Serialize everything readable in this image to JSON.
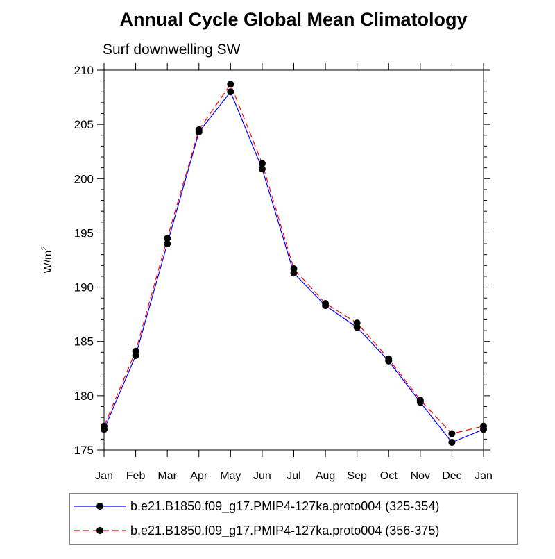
{
  "chart_data": {
    "type": "line",
    "title": "Annual Cycle Global Mean Climatology",
    "subtitle": "Surf downwelling SW",
    "ylabel": "W/m",
    "ylabel_superscript": "2",
    "xlabel": "",
    "ylim": [
      175,
      210
    ],
    "yticks": [
      175,
      180,
      185,
      190,
      195,
      200,
      205,
      210
    ],
    "categories": [
      "Jan",
      "Feb",
      "Mar",
      "Apr",
      "May",
      "Jun",
      "Jul",
      "Aug",
      "Sep",
      "Oct",
      "Nov",
      "Dec",
      "Jan"
    ],
    "series": [
      {
        "name": "b.e21.B1850.f09_g17.PMIP4-127ka.proto004 (325-354)",
        "color": "#0000ff",
        "dash": "solid",
        "values": [
          176.9,
          183.7,
          194.0,
          204.3,
          208.0,
          200.9,
          191.3,
          188.3,
          186.3,
          183.2,
          179.4,
          175.7,
          176.9
        ]
      },
      {
        "name": "b.e21.B1850.f09_g17.PMIP4-127ka.proto004 (356-375)",
        "color": "#ff0000",
        "dash": "dashed",
        "values": [
          177.2,
          184.1,
          194.5,
          204.5,
          208.7,
          201.4,
          191.7,
          188.5,
          186.7,
          183.4,
          179.6,
          176.5,
          177.2
        ]
      }
    ],
    "legend_position": "bottom"
  }
}
